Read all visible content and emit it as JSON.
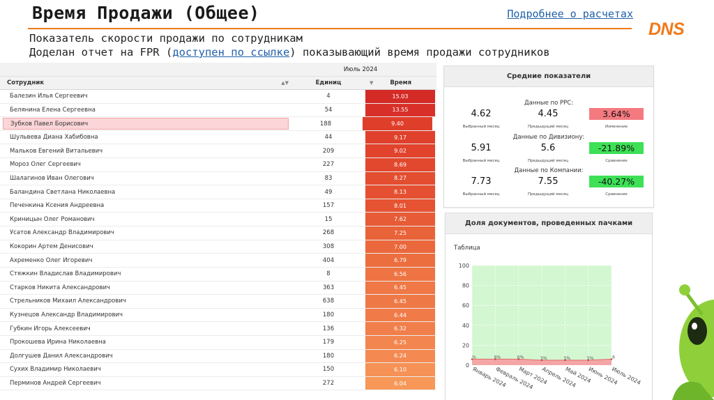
{
  "header": {
    "title": "Время Продажи (Общее)",
    "details_link": "Подробнее о расчетах",
    "logo": "DNS",
    "line1": "Показатель скорости продажи по сотрудникам",
    "line2_pre": "Доделан отчет на FPR (",
    "line2_link": "доступен по ссылке",
    "line2_post": ") показывающий время продажи сотрудников"
  },
  "table": {
    "period": "Июль 2024",
    "col_name": "Сотрудник",
    "col_units": "Единиц",
    "col_time": "Время",
    "rows": [
      {
        "name": "Балезин Илья Сергеевич",
        "units": "4",
        "time": "15.03",
        "color": "#d42b27"
      },
      {
        "name": "Белянина Елена Сергеевна",
        "units": "54",
        "time": "13.55",
        "color": "#d83029"
      },
      {
        "name": "Зубков Павел Борисович",
        "units": "188",
        "time": "9.40",
        "color": "#df3e2b"
      },
      {
        "name": "Шульвева Диана Хабибовна",
        "units": "44",
        "time": "9.17",
        "color": "#e0412c"
      },
      {
        "name": "Мальков Евгений Витальевич",
        "units": "209",
        "time": "9.02",
        "color": "#e1432d"
      },
      {
        "name": "Мороз Олег Сергеевич",
        "units": "227",
        "time": "8.69",
        "color": "#e2482e"
      },
      {
        "name": "Шалагинов Иван Олегович",
        "units": "83",
        "time": "8.27",
        "color": "#e34d30"
      },
      {
        "name": "Баландина Светлана Николаевна",
        "units": "49",
        "time": "8.13",
        "color": "#e45031"
      },
      {
        "name": "Печенкина Ксения Андреевна",
        "units": "157",
        "time": "8.01",
        "color": "#e55332"
      },
      {
        "name": "Криницын Олег Романович",
        "units": "15",
        "time": "7.62",
        "color": "#e75b36"
      },
      {
        "name": "Усатов Александр Владимирович",
        "units": "268",
        "time": "7.25",
        "color": "#e96339"
      },
      {
        "name": "Кокорин Артем Денисович",
        "units": "308",
        "time": "7.00",
        "color": "#eb683c"
      },
      {
        "name": "Ахременко Олег Игоревич",
        "units": "404",
        "time": "6.79",
        "color": "#ec6e3f"
      },
      {
        "name": "Стяжкин Владислав Владимирович",
        "units": "8",
        "time": "6.56",
        "color": "#ee7443"
      },
      {
        "name": "Старков Никита Александрович",
        "units": "363",
        "time": "6.45",
        "color": "#ef7846"
      },
      {
        "name": "Стрельников Михаил Александрович",
        "units": "638",
        "time": "6.45",
        "color": "#ef7946"
      },
      {
        "name": "Кузнецов Александр Владимирович",
        "units": "180",
        "time": "6.44",
        "color": "#f07b48"
      },
      {
        "name": "Губкин Игорь Алексеевич",
        "units": "136",
        "time": "6.32",
        "color": "#f17f4b"
      },
      {
        "name": "Прокошева Ирина Николаевна",
        "units": "179",
        "time": "6.25",
        "color": "#f3854f"
      },
      {
        "name": "Долгушев Данил Александрович",
        "units": "180",
        "time": "6.24",
        "color": "#f48a52"
      },
      {
        "name": "Сухих Владимир Николаевич",
        "units": "150",
        "time": "6.10",
        "color": "#f69255"
      },
      {
        "name": "Перминов Андрей Сергеевич",
        "units": "272",
        "time": "6.04",
        "color": "#f79858"
      }
    ],
    "highlighted_row": 2
  },
  "metrics": {
    "title": "Средние показатели",
    "groups": [
      {
        "label": "Данные по РРС:",
        "selected": "4.62",
        "selected_cap": "Выбранный месяц",
        "prev": "4.45",
        "prev_cap": "Предыдущий месяц",
        "change": "3.64%",
        "change_cap": "Изменение",
        "change_color": "red"
      },
      {
        "label": "Данные по Дивизиону:",
        "selected": "5.91",
        "selected_cap": "Выбранный месяц",
        "prev": "5.6",
        "prev_cap": "Предыдущий месяц",
        "change": "-21.89%",
        "change_cap": "Сравнение",
        "change_color": "green"
      },
      {
        "label": "Данные по Компании:",
        "selected": "7.73",
        "selected_cap": "Выбранный месяц",
        "prev": "7.55",
        "prev_cap": "Предыдущий месяц",
        "change": "-40.27%",
        "change_cap": "Сравнение",
        "change_color": "green"
      }
    ]
  },
  "chart_panel": {
    "title": "Доля документов, проведенных пачками",
    "table_label": "Таблица"
  },
  "chart_data": {
    "type": "area",
    "title": "Доля документов, проведенных пачками",
    "categories": [
      "Январь 2024",
      "Февраль 2024",
      "Март 2024",
      "Апрель 2024",
      "Май 2024",
      "Июнь 2024",
      "Июль 2024"
    ],
    "series": [
      {
        "values": [
          100,
          100,
          100,
          100,
          100,
          100,
          100
        ],
        "color": "#d3f7d1"
      },
      {
        "values": [
          6,
          6,
          6,
          5,
          5,
          5,
          6
        ],
        "labels": [
          "%",
          "6%",
          "6%",
          "5%",
          "5%",
          "5%",
          "6"
        ],
        "color": "#f4a6a6"
      }
    ],
    "ylim": [
      0,
      100
    ],
    "yticks": [
      "0",
      "20",
      "40",
      "60",
      "80",
      "100"
    ],
    "grid": true
  }
}
